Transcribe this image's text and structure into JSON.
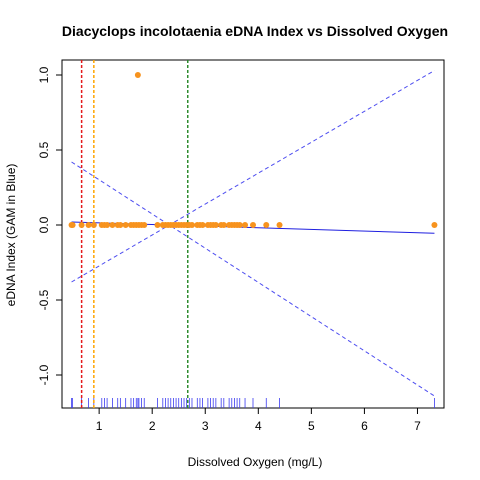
{
  "chart_data": {
    "type": "scatter",
    "title": "Diacyclops incolotaenia eDNA Index vs Dissolved Oxygen",
    "xlabel": "Dissolved Oxygen (mg/L)",
    "ylabel": "eDNA Index (GAM in Blue)",
    "xlim": [
      0.3,
      7.5
    ],
    "ylim": [
      -1.22,
      1.1
    ],
    "xticks": [
      1,
      2,
      3,
      4,
      5,
      6,
      7
    ],
    "yticks": [
      -1.0,
      -0.5,
      0.0,
      0.5,
      1.0
    ],
    "ytick_labels": [
      "-1.0",
      "-0.5",
      "0.0",
      "0.5",
      "1.0"
    ],
    "grid": false,
    "colors": {
      "points": "#f7931e",
      "gam": "#1f1fe0",
      "ci": "#4d4df0",
      "rug": "#3b3bf0",
      "line_red": "#e41a1c",
      "line_orange": "#ffa500",
      "line_green": "#2e8b2e"
    },
    "points": [
      {
        "x": 0.48,
        "y": 0
      },
      {
        "x": 0.5,
        "y": 0
      },
      {
        "x": 0.67,
        "y": 0
      },
      {
        "x": 0.8,
        "y": 0
      },
      {
        "x": 0.9,
        "y": 0
      },
      {
        "x": 1.05,
        "y": 0
      },
      {
        "x": 1.1,
        "y": 0
      },
      {
        "x": 1.15,
        "y": 0
      },
      {
        "x": 1.25,
        "y": 0
      },
      {
        "x": 1.35,
        "y": 0
      },
      {
        "x": 1.4,
        "y": 0
      },
      {
        "x": 1.5,
        "y": 0
      },
      {
        "x": 1.6,
        "y": 0
      },
      {
        "x": 1.65,
        "y": 0
      },
      {
        "x": 1.7,
        "y": 0
      },
      {
        "x": 1.75,
        "y": 0
      },
      {
        "x": 1.8,
        "y": 0
      },
      {
        "x": 1.85,
        "y": 0
      },
      {
        "x": 2.1,
        "y": 0
      },
      {
        "x": 2.2,
        "y": 0
      },
      {
        "x": 2.25,
        "y": 0
      },
      {
        "x": 2.3,
        "y": 0
      },
      {
        "x": 2.35,
        "y": 0
      },
      {
        "x": 2.4,
        "y": 0
      },
      {
        "x": 2.45,
        "y": 0
      },
      {
        "x": 2.5,
        "y": 0
      },
      {
        "x": 2.55,
        "y": 0
      },
      {
        "x": 2.6,
        "y": 0
      },
      {
        "x": 2.65,
        "y": 0
      },
      {
        "x": 2.7,
        "y": 0
      },
      {
        "x": 2.75,
        "y": 0
      },
      {
        "x": 2.85,
        "y": 0
      },
      {
        "x": 2.9,
        "y": 0
      },
      {
        "x": 2.95,
        "y": 0
      },
      {
        "x": 3.05,
        "y": 0
      },
      {
        "x": 3.1,
        "y": 0
      },
      {
        "x": 3.15,
        "y": 0
      },
      {
        "x": 3.2,
        "y": 0
      },
      {
        "x": 3.3,
        "y": 0
      },
      {
        "x": 3.35,
        "y": 0
      },
      {
        "x": 3.45,
        "y": 0
      },
      {
        "x": 3.5,
        "y": 0
      },
      {
        "x": 3.55,
        "y": 0
      },
      {
        "x": 3.6,
        "y": 0
      },
      {
        "x": 3.65,
        "y": 0
      },
      {
        "x": 3.75,
        "y": 0
      },
      {
        "x": 3.9,
        "y": 0
      },
      {
        "x": 4.15,
        "y": 0
      },
      {
        "x": 4.4,
        "y": 0
      },
      {
        "x": 7.32,
        "y": 0
      },
      {
        "x": 1.73,
        "y": 1.0
      }
    ],
    "gam_fit": {
      "x": [
        0.48,
        7.32
      ],
      "y": [
        0.02,
        -0.055
      ]
    },
    "ci_upper": {
      "x": [
        0.48,
        7.32
      ],
      "y": [
        -0.38,
        1.03
      ]
    },
    "ci_lower": {
      "x": [
        0.48,
        7.32
      ],
      "y": [
        0.42,
        -1.14
      ]
    },
    "vlines": [
      {
        "x": 0.67,
        "color": "#e41a1c"
      },
      {
        "x": 0.9,
        "color": "#ffa500"
      },
      {
        "x": 2.67,
        "color": "#2e8b2e"
      }
    ],
    "rug": [
      0.48,
      0.5,
      0.67,
      0.8,
      0.9,
      1.05,
      1.1,
      1.15,
      1.25,
      1.35,
      1.4,
      1.5,
      1.6,
      1.65,
      1.7,
      1.73,
      1.75,
      1.8,
      1.85,
      2.1,
      2.2,
      2.25,
      2.3,
      2.35,
      2.4,
      2.45,
      2.5,
      2.55,
      2.6,
      2.65,
      2.7,
      2.75,
      2.85,
      2.9,
      2.95,
      3.05,
      3.1,
      3.15,
      3.2,
      3.3,
      3.35,
      3.45,
      3.5,
      3.55,
      3.6,
      3.65,
      3.75,
      3.9,
      4.15,
      4.4,
      7.32
    ]
  }
}
